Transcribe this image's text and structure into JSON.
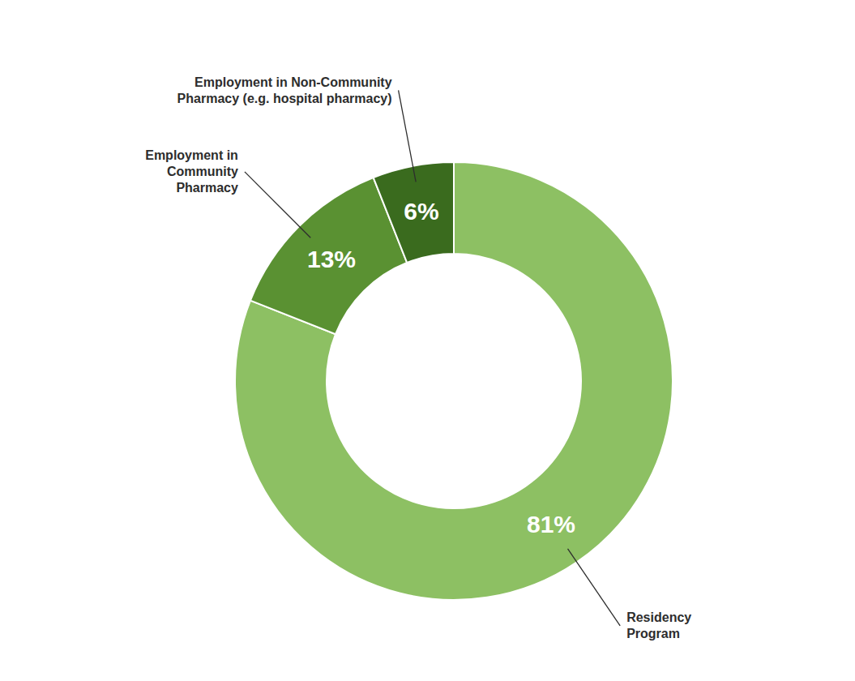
{
  "chart_data": {
    "type": "donut",
    "categories": [
      "Residency\nProgram",
      "Employment in\nCommunity\nPharmacy",
      "Employment in Non-Community\nPharmacy (e.g. hospital pharmacy)"
    ],
    "values": [
      81,
      13,
      6
    ],
    "value_labels": [
      "81%",
      "13%",
      "6%"
    ],
    "data_labels": true,
    "colors": [
      "#8dc063",
      "#5a9132",
      "#3a6b1e"
    ]
  }
}
